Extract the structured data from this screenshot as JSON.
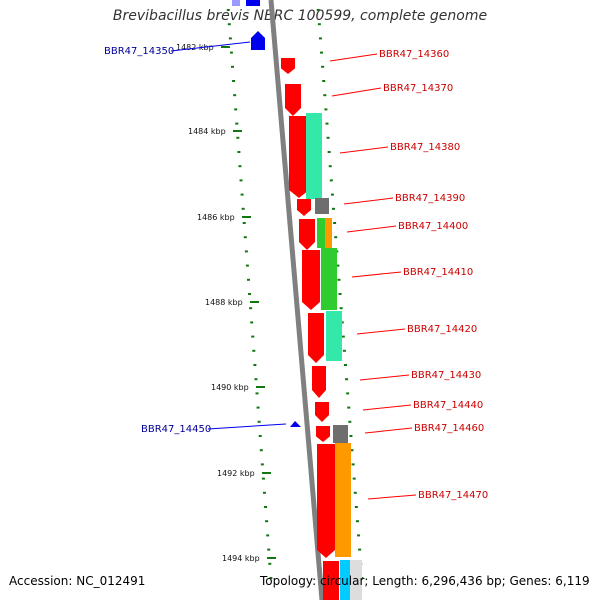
{
  "title": "Brevibacillus brevis NBRC 100599, complete genome",
  "accession_text": "Accession: NC_012491",
  "summary_text": "Topology: circular; Length: 6,296,436 bp; Genes: 6,119",
  "colors": {
    "backbone": "#808080",
    "tick": "#117711",
    "cds": "#ff0000",
    "rna_teal": "#33e8a8",
    "rna_green": "#2ecc2e",
    "orange": "#ff9900",
    "gray": "#6e6e6e",
    "blue": "#0000ee",
    "label_red": "#cc0000",
    "label_blue": "#000099"
  },
  "ruler": {
    "tick_labels": [
      "1482 kbp",
      "1484 kbp",
      "1486 kbp",
      "1488 kbp",
      "1490 kbp",
      "1492 kbp",
      "1494 kbp"
    ]
  },
  "features": [
    {
      "label": "BBR47_14350",
      "color": "blue"
    },
    {
      "label": "BBR47_14360",
      "color": "label_red"
    },
    {
      "label": "BBR47_14370",
      "color": "label_red"
    },
    {
      "label": "BBR47_14380",
      "color": "label_red"
    },
    {
      "label": "BBR47_14390",
      "color": "label_red"
    },
    {
      "label": "BBR47_14400",
      "color": "label_red"
    },
    {
      "label": "BBR47_14410",
      "color": "label_red"
    },
    {
      "label": "BBR47_14420",
      "color": "label_red"
    },
    {
      "label": "BBR47_14430",
      "color": "label_red"
    },
    {
      "label": "BBR47_14440",
      "color": "label_red"
    },
    {
      "label": "BBR47_14460",
      "color": "label_red"
    },
    {
      "label": "BBR47_14470",
      "color": "label_red"
    },
    {
      "label": "BBR47_14450",
      "color": "blue"
    }
  ]
}
